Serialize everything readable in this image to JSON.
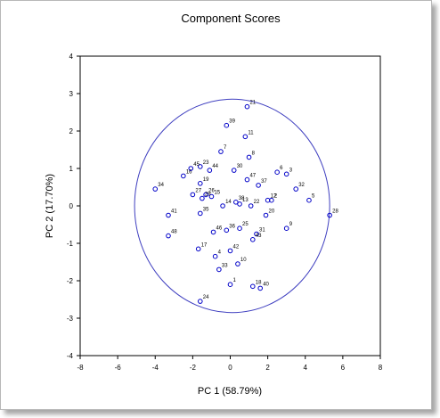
{
  "chart_data": {
    "type": "scatter",
    "title": "Component Scores",
    "xlabel": "PC 1 (58.79%)",
    "ylabel": "PC 2 (17.70%)",
    "xlim": [
      -8,
      8
    ],
    "ylim": [
      -4,
      4
    ],
    "xticks": [
      "-8",
      "-6",
      "-4",
      "-2",
      "0",
      "2",
      "4",
      "6",
      "8"
    ],
    "yticks": [
      "-4",
      "-3",
      "-2",
      "-1",
      "0",
      "1",
      "2",
      "3",
      "4"
    ],
    "grid": false,
    "ellipse": {
      "cx": 0.1,
      "cy": 0.0,
      "rx": 5.2,
      "ry": 2.85,
      "color": "#4040c0"
    },
    "marker_color": "#0000c8",
    "points": [
      {
        "label": "1",
        "x": 0.0,
        "y": -2.1
      },
      {
        "label": "2",
        "x": 2.2,
        "y": 0.15
      },
      {
        "label": "3",
        "x": 3.0,
        "y": 0.85
      },
      {
        "label": "4",
        "x": -0.8,
        "y": -1.35
      },
      {
        "label": "5",
        "x": 4.2,
        "y": 0.15
      },
      {
        "label": "6",
        "x": 2.5,
        "y": 0.9
      },
      {
        "label": "7",
        "x": -0.5,
        "y": 1.45
      },
      {
        "label": "8",
        "x": 1.0,
        "y": 1.3
      },
      {
        "label": "9",
        "x": 3.0,
        "y": -0.6
      },
      {
        "label": "10",
        "x": 0.4,
        "y": -1.55
      },
      {
        "label": "11",
        "x": 0.8,
        "y": 1.85
      },
      {
        "label": "12",
        "x": 2.0,
        "y": 0.15
      },
      {
        "label": "13",
        "x": 0.5,
        "y": 0.05
      },
      {
        "label": "14",
        "x": -0.4,
        "y": 0.0
      },
      {
        "label": "15",
        "x": -1.0,
        "y": 0.25
      },
      {
        "label": "16",
        "x": -2.5,
        "y": 0.8
      },
      {
        "label": "17",
        "x": -1.7,
        "y": -1.15
      },
      {
        "label": "18",
        "x": 1.2,
        "y": -2.15
      },
      {
        "label": "19",
        "x": -1.6,
        "y": 0.6
      },
      {
        "label": "20",
        "x": 1.9,
        "y": -0.25
      },
      {
        "label": "21",
        "x": 0.9,
        "y": 2.65
      },
      {
        "label": "22",
        "x": 1.1,
        "y": 0.0
      },
      {
        "label": "23",
        "x": -1.6,
        "y": 1.05
      },
      {
        "label": "24",
        "x": -1.6,
        "y": -2.55
      },
      {
        "label": "25",
        "x": 0.5,
        "y": -0.6
      },
      {
        "label": "26",
        "x": -1.3,
        "y": 0.3
      },
      {
        "label": "27",
        "x": -2.0,
        "y": 0.3
      },
      {
        "label": "28",
        "x": 5.3,
        "y": -0.25
      },
      {
        "label": "29",
        "x": -1.5,
        "y": 0.2
      },
      {
        "label": "30",
        "x": 0.2,
        "y": 0.95
      },
      {
        "label": "31",
        "x": 1.4,
        "y": -0.75
      },
      {
        "label": "32",
        "x": 3.5,
        "y": 0.45
      },
      {
        "label": "33",
        "x": -0.6,
        "y": -1.7
      },
      {
        "label": "34",
        "x": -4.0,
        "y": 0.45
      },
      {
        "label": "35",
        "x": -1.6,
        "y": -0.2
      },
      {
        "label": "36",
        "x": -0.2,
        "y": -0.65
      },
      {
        "label": "37",
        "x": 1.5,
        "y": 0.55
      },
      {
        "label": "38",
        "x": 0.3,
        "y": 0.1
      },
      {
        "label": "39",
        "x": -0.2,
        "y": 2.15
      },
      {
        "label": "40",
        "x": 1.6,
        "y": -2.2
      },
      {
        "label": "41",
        "x": -3.3,
        "y": -0.25
      },
      {
        "label": "42",
        "x": 0.0,
        "y": -1.2
      },
      {
        "label": "43",
        "x": 1.2,
        "y": -0.9
      },
      {
        "label": "44",
        "x": -1.1,
        "y": 0.95
      },
      {
        "label": "45",
        "x": -2.1,
        "y": 1.0
      },
      {
        "label": "46",
        "x": -0.9,
        "y": -0.7
      },
      {
        "label": "47",
        "x": 0.9,
        "y": 0.7
      },
      {
        "label": "48",
        "x": -3.3,
        "y": -0.8
      }
    ]
  }
}
